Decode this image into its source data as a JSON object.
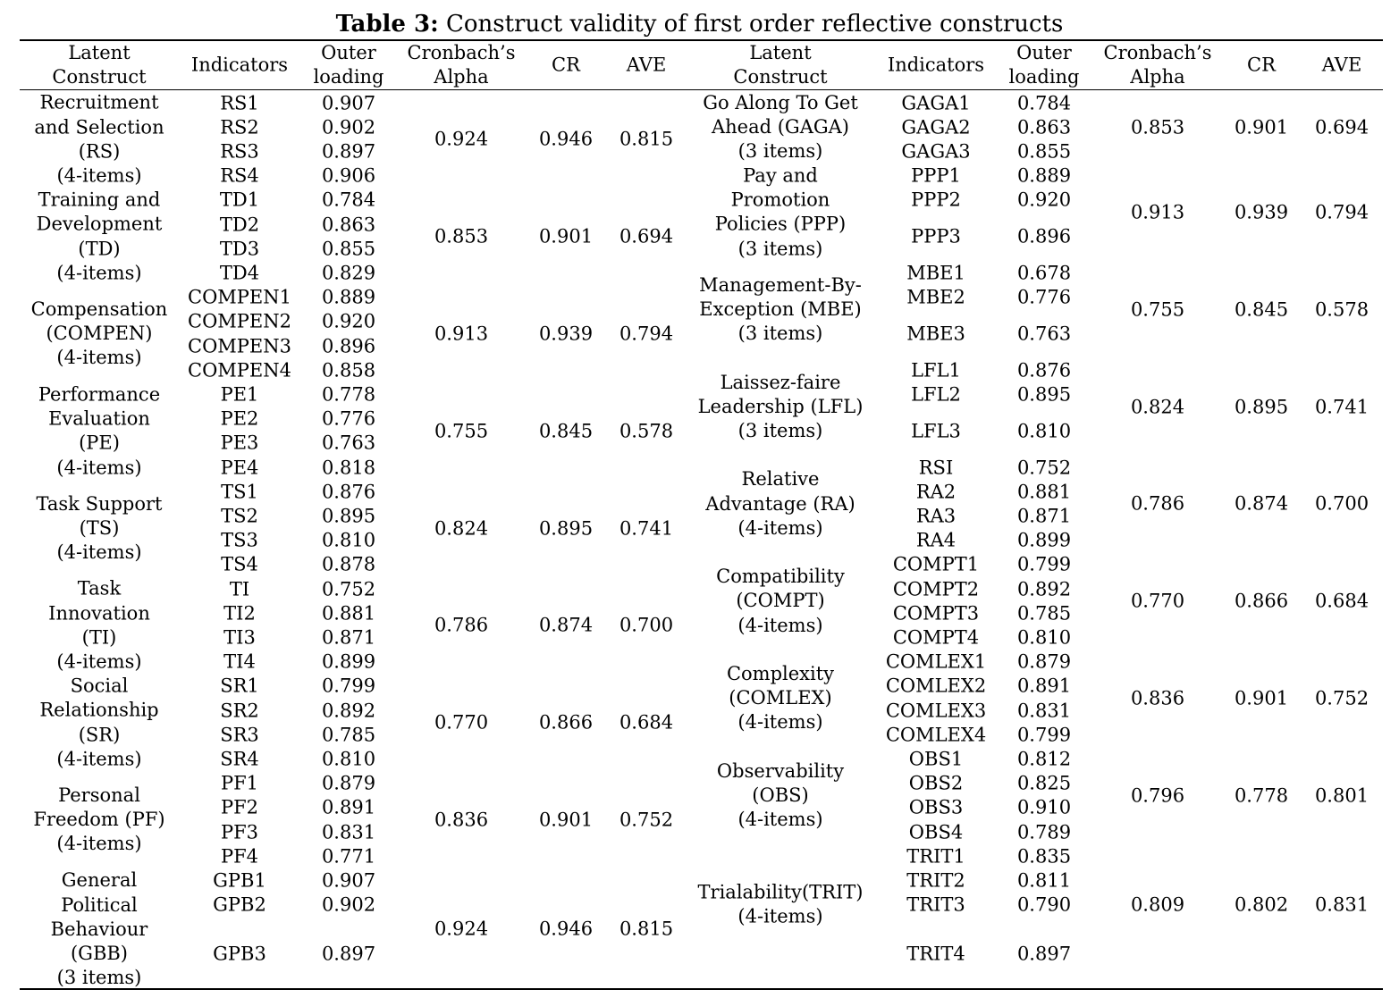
{
  "title": {
    "bold": "Table 3:",
    "rest": " Construct validity of first order reflective constructs"
  },
  "headers": {
    "latent": "Latent\nConstruct",
    "indicators": "Indicators",
    "outer": "Outer\nloading",
    "alpha": "Cronbach’s\nAlpha",
    "cr": "CR",
    "ave": "AVE"
  },
  "left": [
    {
      "construct": "Recruitment\nand Selection\n(RS)\n(4-items)",
      "indicators": [
        [
          "RS1",
          "0.907"
        ],
        [
          "RS2",
          "0.902"
        ],
        [
          "RS3",
          "0.897"
        ],
        [
          "RS4",
          "0.906"
        ]
      ],
      "alpha": "0.924",
      "cr": "0.946",
      "ave": "0.815"
    },
    {
      "construct": "Training and\nDevelopment\n(TD)\n(4-items)",
      "indicators": [
        [
          "TD1",
          "0.784"
        ],
        [
          "TD2",
          "0.863"
        ],
        [
          "TD3",
          "0.855"
        ],
        [
          "TD4",
          "0.829"
        ]
      ],
      "alpha": "0.853",
      "cr": "0.901",
      "ave": "0.694"
    },
    {
      "construct": "Compensation\n(COMPEN)\n(4-items)",
      "indicators": [
        [
          "COMPEN1",
          "0.889"
        ],
        [
          "COMPEN2",
          "0.920"
        ],
        [
          "COMPEN3",
          "0.896"
        ],
        [
          "COMPEN4",
          "0.858"
        ]
      ],
      "alpha": "0.913",
      "cr": "0.939",
      "ave": "0.794"
    },
    {
      "construct": "Performance\nEvaluation\n(PE)\n(4-items)",
      "indicators": [
        [
          "PE1",
          "0.778"
        ],
        [
          "PE2",
          "0.776"
        ],
        [
          "PE3",
          "0.763"
        ],
        [
          "PE4",
          "0.818"
        ]
      ],
      "alpha": "0.755",
      "cr": "0.845",
      "ave": "0.578"
    },
    {
      "construct": "Task Support\n(TS)\n(4-items)",
      "indicators": [
        [
          "TS1",
          "0.876"
        ],
        [
          "TS2",
          "0.895"
        ],
        [
          "TS3",
          "0.810"
        ],
        [
          "TS4",
          "0.878"
        ]
      ],
      "alpha": "0.824",
      "cr": "0.895",
      "ave": "0.741"
    },
    {
      "construct": "Task\nInnovation\n(TI)\n(4-items)",
      "indicators": [
        [
          "TI",
          "0.752"
        ],
        [
          "TI2",
          "0.881"
        ],
        [
          "TI3",
          "0.871"
        ],
        [
          "TI4",
          "0.899"
        ]
      ],
      "alpha": "0.786",
      "cr": "0.874",
      "ave": "0.700"
    },
    {
      "construct": "Social\nRelationship\n(SR)\n(4-items)",
      "indicators": [
        [
          "SR1",
          "0.799"
        ],
        [
          "SR2",
          "0.892"
        ],
        [
          "SR3",
          "0.785"
        ],
        [
          "SR4",
          "0.810"
        ]
      ],
      "alpha": "0.770",
      "cr": "0.866",
      "ave": "0.684"
    },
    {
      "construct": "Personal\nFreedom (PF)\n(4-items)",
      "indicators": [
        [
          "PF1",
          "0.879"
        ],
        [
          "PF2",
          "0.891"
        ],
        [
          "PF3",
          "0.831"
        ],
        [
          "PF4",
          "0.771"
        ]
      ],
      "alpha": "0.836",
      "cr": "0.901",
      "ave": "0.752"
    },
    {
      "construct": "General\nPolitical\nBehaviour\n(GBB)\n(3 items)",
      "indicators": [
        [
          "GPB1",
          "0.907"
        ],
        [
          "GPB2",
          "0.902"
        ],
        [
          "GPB3",
          "0.897"
        ]
      ],
      "alpha": "0.924",
      "cr": "0.946",
      "ave": "0.815"
    }
  ],
  "right": [
    {
      "construct": "Go Along To Get\nAhead (GAGA)\n(3 items)",
      "indicators": [
        [
          "GAGA1",
          "0.784"
        ],
        [
          "GAGA2",
          "0.863"
        ],
        [
          "GAGA3",
          "0.855"
        ]
      ],
      "alpha": "0.853",
      "cr": "0.901",
      "ave": "0.694"
    },
    {
      "construct": "Pay and\nPromotion\nPolicies (PPP)\n(3 items)",
      "indicators": [
        [
          "PPP1",
          "0.889"
        ],
        [
          "PPP2",
          "0.920"
        ],
        [
          "PPP3",
          "0.896"
        ]
      ],
      "alpha": "0.913",
      "cr": "0.939",
      "ave": "0.794"
    },
    {
      "construct": "Management-By-\nException (MBE)\n(3 items)",
      "indicators": [
        [
          "MBE1",
          "0.678"
        ],
        [
          "MBE2",
          "0.776"
        ],
        [
          "MBE3",
          "0.763"
        ]
      ],
      "alpha": "0.755",
      "cr": "0.845",
      "ave": "0.578"
    },
    {
      "construct": "Laissez-faire\nLeadership (LFL)\n(3 items)",
      "indicators": [
        [
          "LFL1",
          "0.876"
        ],
        [
          "LFL2",
          "0.895"
        ],
        [
          "LFL3",
          "0.810"
        ]
      ],
      "alpha": "0.824",
      "cr": "0.895",
      "ave": "0.741"
    },
    {
      "construct": "Relative\nAdvantage (RA)\n(4-items)",
      "indicators": [
        [
          "RSI",
          "0.752"
        ],
        [
          "RA2",
          "0.881"
        ],
        [
          "RA3",
          "0.871"
        ],
        [
          "RA4",
          "0.899"
        ]
      ],
      "alpha": "0.786",
      "cr": "0.874",
      "ave": "0.700"
    },
    {
      "construct": "Compatibility\n(COMPT)\n(4-items)",
      "indicators": [
        [
          "COMPT1",
          "0.799"
        ],
        [
          "COMPT2",
          "0.892"
        ],
        [
          "COMPT3",
          "0.785"
        ],
        [
          "COMPT4",
          "0.810"
        ]
      ],
      "alpha": "0.770",
      "cr": "0.866",
      "ave": "0.684"
    },
    {
      "construct": "Complexity\n(COMLEX)\n(4-items)",
      "indicators": [
        [
          "COMLEX1",
          "0.879"
        ],
        [
          "COMLEX2",
          "0.891"
        ],
        [
          "COMLEX3",
          "0.831"
        ],
        [
          "COMLEX4",
          "0.799"
        ]
      ],
      "alpha": "0.836",
      "cr": "0.901",
      "ave": "0.752"
    },
    {
      "construct": "Observability\n(OBS)\n(4-items)",
      "indicators": [
        [
          "OBS1",
          "0.812"
        ],
        [
          "OBS2",
          "0.825"
        ],
        [
          "OBS3",
          "0.910"
        ],
        [
          "OBS4",
          "0.789"
        ]
      ],
      "alpha": "0.796",
      "cr": "0.778",
      "ave": "0.801"
    },
    {
      "construct": "Trialability(TRIT)\n(4-items)",
      "indicators": [
        [
          "TRIT1",
          "0.835"
        ],
        [
          "TRIT2",
          "0.811"
        ],
        [
          "TRIT3",
          "0.790"
        ],
        [
          "TRIT4",
          "0.897"
        ]
      ],
      "alpha": "0.809",
      "cr": "0.802",
      "ave": "0.831"
    }
  ]
}
